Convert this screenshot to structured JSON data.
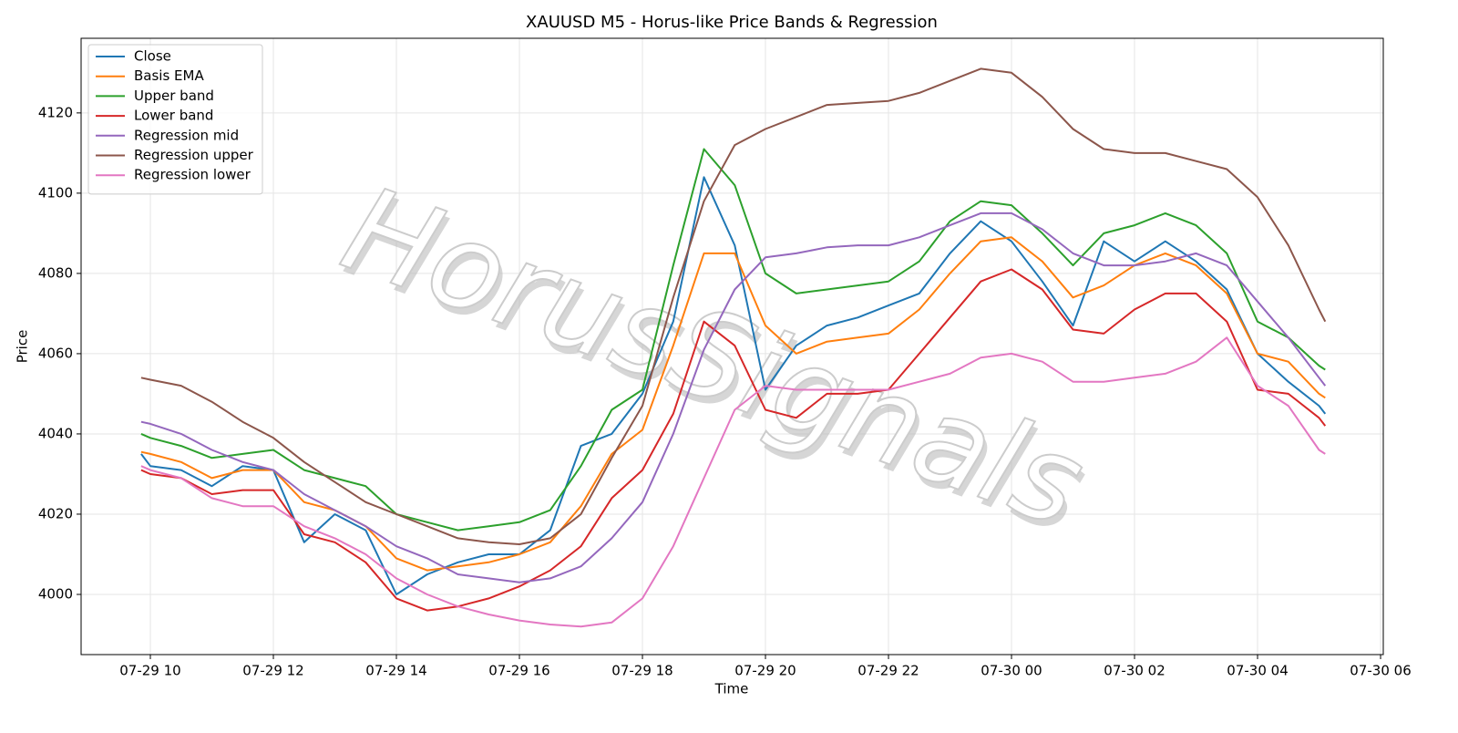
{
  "chart_data": {
    "type": "line",
    "title": "XAUUSD M5 - Horus-like Price Bands & Regression",
    "x_label": "Time",
    "y_label": "Price",
    "watermark": "HorusSignals",
    "x": [
      9.85,
      10,
      10.5,
      11,
      11.5,
      12,
      12.5,
      13,
      13.5,
      14,
      14.5,
      15,
      15.5,
      16,
      16.5,
      17,
      17.5,
      18,
      18.5,
      19,
      19.5,
      20,
      20.5,
      21,
      21.5,
      22,
      22.5,
      23,
      23.5,
      24,
      24.5,
      25,
      25.5,
      26,
      26.5,
      27,
      27.5,
      28,
      28.5,
      29,
      29.1
    ],
    "series": [
      {
        "name": "Close",
        "color": "#1f77b4",
        "values": [
          4035,
          4032,
          4031,
          4027,
          4032,
          4031,
          4013,
          4020,
          4016,
          4000,
          4005,
          4008,
          4010,
          4010,
          4016,
          4037,
          4040,
          4050,
          4068,
          4104,
          4087,
          4051,
          4062,
          4067,
          4069,
          4072,
          4075,
          4085,
          4093,
          4088,
          4078,
          4067,
          4088,
          4083,
          4088,
          4083,
          4076,
          4060,
          4053,
          4047,
          4045
        ]
      },
      {
        "name": "Basis EMA",
        "color": "#ff7f0e",
        "values": [
          4035.5,
          4035,
          4033,
          4029,
          4031,
          4031,
          4023,
          4021,
          4017,
          4009,
          4006,
          4007,
          4008,
          4010,
          4013,
          4022,
          4035,
          4041,
          4062,
          4085,
          4085,
          4067,
          4060,
          4063,
          4064,
          4065,
          4071,
          4080,
          4088,
          4089,
          4083,
          4074,
          4077,
          4082,
          4085,
          4082,
          4075,
          4060,
          4058,
          4050,
          4049
        ]
      },
      {
        "name": "Upper band",
        "color": "#2ca02c",
        "values": [
          4040,
          4039,
          4037,
          4034,
          4035,
          4036,
          4031,
          4029,
          4027,
          4020,
          4018,
          4016,
          4017,
          4018,
          4021,
          4032,
          4046,
          4051,
          4082,
          4111,
          4102,
          4080,
          4075,
          4076,
          4077,
          4078,
          4083,
          4093,
          4098,
          4097,
          4090,
          4082,
          4090,
          4092,
          4095,
          4092,
          4085,
          4068,
          4064,
          4057,
          4056
        ]
      },
      {
        "name": "Lower band",
        "color": "#d62728",
        "values": [
          4031,
          4030,
          4029,
          4025,
          4026,
          4026,
          4015,
          4013,
          4008,
          3999,
          3996,
          3997,
          3999,
          4002,
          4006,
          4012,
          4024,
          4031,
          4045,
          4068,
          4062,
          4046,
          4044,
          4050,
          4050,
          4051,
          4060,
          4069,
          4078,
          4081,
          4076,
          4066,
          4065,
          4071,
          4075,
          4075,
          4068,
          4051,
          4050,
          4044,
          4042
        ]
      },
      {
        "name": "Regression mid",
        "color": "#9467bd",
        "values": [
          4043,
          4042.5,
          4040,
          4036,
          4033,
          4031,
          4025,
          4021,
          4017,
          4012,
          4009,
          4005,
          4004,
          4003,
          4004,
          4007,
          4014,
          4023,
          4040,
          4061,
          4076,
          4084,
          4085,
          4086.5,
          4087,
          4087,
          4089,
          4092,
          4095,
          4095,
          4091,
          4085,
          4082,
          4082,
          4083,
          4085,
          4082,
          4073,
          4064,
          4054,
          4052
        ]
      },
      {
        "name": "Regression upper",
        "color": "#8c564b",
        "values": [
          4054,
          4053.5,
          4052,
          4048,
          4043,
          4039,
          4033,
          4028,
          4023,
          4020,
          4017,
          4014,
          4013,
          4012.5,
          4014,
          4020,
          4034,
          4047,
          4074,
          4098,
          4112,
          4116,
          4119,
          4122,
          4122.5,
          4123,
          4125,
          4128,
          4131,
          4130,
          4124,
          4116,
          4111,
          4110,
          4110,
          4108,
          4106,
          4099,
          4087,
          4071,
          4068
        ]
      },
      {
        "name": "Regression lower",
        "color": "#e377c2",
        "values": [
          4032,
          4031,
          4029,
          4024,
          4022,
          4022,
          4017,
          4014,
          4010,
          4004,
          4000,
          3997,
          3995,
          3993.5,
          3992.5,
          3992,
          3993,
          3999,
          4012,
          4029,
          4046,
          4052,
          4051,
          4051,
          4051,
          4051,
          4053,
          4055,
          4059,
          4060,
          4058,
          4053,
          4053,
          4054,
          4055,
          4058,
          4064,
          4052,
          4047,
          4036,
          4035
        ]
      }
    ],
    "xlim": [
      8.874,
      30.044
    ],
    "xticks": [
      {
        "value": 10,
        "label": "07-29 10"
      },
      {
        "value": 12,
        "label": "07-29 12"
      },
      {
        "value": 14,
        "label": "07-29 14"
      },
      {
        "value": 16,
        "label": "07-29 16"
      },
      {
        "value": 18,
        "label": "07-29 18"
      },
      {
        "value": 20,
        "label": "07-29 20"
      },
      {
        "value": 22,
        "label": "07-29 22"
      },
      {
        "value": 24,
        "label": "07-30 00"
      },
      {
        "value": 26,
        "label": "07-30 02"
      },
      {
        "value": 28,
        "label": "07-30 04"
      },
      {
        "value": 30,
        "label": "07-30 06"
      }
    ],
    "ylim": [
      3985,
      4138.6
    ],
    "yticks": [
      4000,
      4020,
      4040,
      4060,
      4080,
      4100,
      4120
    ],
    "grid": true,
    "legend": "upper left"
  }
}
